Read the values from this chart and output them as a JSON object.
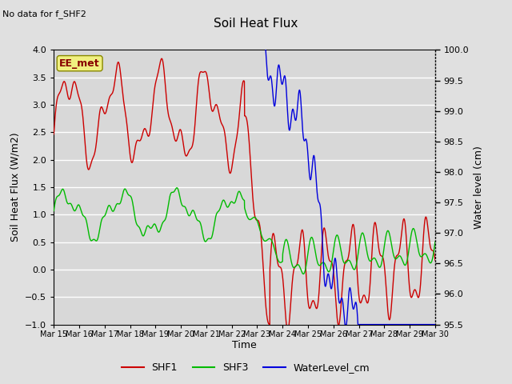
{
  "title": "Soil Heat Flux",
  "title_note": "No data for f_SHF2",
  "ylabel_left": "Soil Heat Flux (W/m2)",
  "ylabel_right": "Water level (cm)",
  "xlabel": "Time",
  "ylim_left": [
    -1.0,
    4.0
  ],
  "ylim_right": [
    95.5,
    100.0
  ],
  "fig_bg_color": "#e0e0e0",
  "plot_bg_color": "#d8d8d8",
  "grid_color": "#ffffff",
  "xtick_labels": [
    "Mar 15",
    "Mar 16",
    "Mar 17",
    "Mar 18",
    "Mar 19",
    "Mar 20",
    "Mar 21",
    "Mar 22",
    "Mar 23",
    "Mar 24",
    "Mar 25",
    "Mar 26",
    "Mar 27",
    "Mar 28",
    "Mar 29",
    "Mar 30"
  ],
  "legend_items": [
    "SHF1",
    "SHF3",
    "WaterLevel_cm"
  ],
  "ee_met_label": "EE_met",
  "ee_met_bg": "#f0f080",
  "ee_met_edge": "#888800",
  "ee_met_text_color": "#880000",
  "shf1_color": "#cc0000",
  "shf3_color": "#00bb00",
  "water_color": "#0000dd",
  "linewidth": 1.0
}
